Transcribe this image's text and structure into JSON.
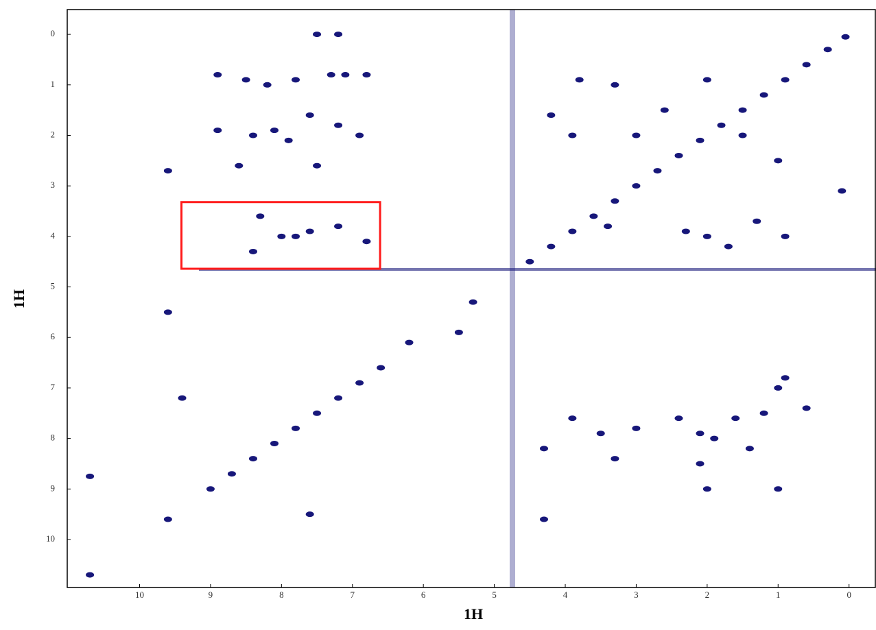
{
  "chart_data": {
    "type": "scatter",
    "x_label": "1H",
    "y_label": "1H",
    "xlim": [
      11.02,
      -0.38
    ],
    "ylim": [
      -0.49,
      10.95
    ],
    "xticks": [
      10,
      9,
      8,
      7,
      6,
      5,
      4,
      3,
      2,
      1,
      0
    ],
    "yticks": [
      0,
      1,
      2,
      3,
      4,
      5,
      6,
      7,
      8,
      9,
      10
    ],
    "color": "#17177a",
    "x": [
      0.05,
      0.3,
      0.6,
      0.9,
      1.2,
      1.5,
      1.8,
      2.1,
      2.4,
      2.7,
      3.0,
      3.3,
      3.6,
      3.9,
      4.2,
      4.5,
      5.3,
      6.6,
      6.9,
      7.2,
      7.5,
      7.8,
      8.1,
      8.4,
      8.7,
      9.0,
      9.6,
      10.7,
      8.9,
      8.5,
      8.2,
      7.8,
      7.3,
      7.1,
      6.8,
      7.5,
      7.2,
      8.9,
      8.4,
      8.1,
      7.9,
      7.6,
      7.2,
      6.9,
      8.6,
      7.5,
      8.3,
      8.0,
      7.8,
      7.6,
      8.4,
      7.2,
      6.8,
      9.6,
      9.6,
      9.4,
      10.7,
      3.9,
      3.5,
      3.0,
      2.4,
      2.1,
      1.9,
      1.6,
      1.2,
      1.0,
      0.9,
      4.3,
      3.3,
      2.1,
      1.4,
      0.6,
      2.0,
      1.0,
      2.0,
      1.7,
      1.3,
      0.9,
      2.3,
      3.4,
      0.1,
      3.8,
      3.3,
      3.0,
      2.6,
      2.0,
      1.5,
      1.0,
      4.2,
      3.9,
      6.2,
      5.5,
      7.6,
      4.3
    ],
    "y": [
      0.05,
      0.3,
      0.6,
      0.9,
      1.2,
      1.5,
      1.8,
      2.1,
      2.4,
      2.7,
      3.0,
      3.3,
      3.6,
      3.9,
      4.2,
      4.5,
      5.3,
      6.6,
      6.9,
      7.2,
      7.5,
      7.8,
      8.1,
      8.4,
      8.7,
      9.0,
      9.6,
      10.7,
      0.8,
      0.9,
      1.0,
      0.9,
      0.8,
      0.8,
      0.8,
      0.0,
      0.0,
      1.9,
      2.0,
      1.9,
      2.1,
      1.6,
      1.8,
      2.0,
      2.6,
      2.6,
      3.6,
      4.0,
      4.0,
      3.9,
      4.3,
      3.8,
      4.1,
      2.7,
      5.5,
      7.2,
      8.75,
      7.6,
      7.9,
      7.8,
      7.6,
      7.9,
      8.0,
      7.6,
      7.5,
      7.0,
      6.8,
      8.2,
      8.4,
      8.5,
      8.2,
      7.4,
      9.0,
      9.0,
      4.0,
      4.2,
      3.7,
      4.0,
      3.9,
      3.8,
      3.1,
      0.9,
      1.0,
      2.0,
      1.5,
      0.9,
      2.0,
      2.5,
      1.6,
      2.0,
      6.1,
      5.9,
      9.5,
      9.6
    ],
    "highlight": {
      "x": [
        9.41,
        6.61
      ],
      "y": [
        3.32,
        4.64
      ],
      "color": "#ff1a1a"
    }
  }
}
